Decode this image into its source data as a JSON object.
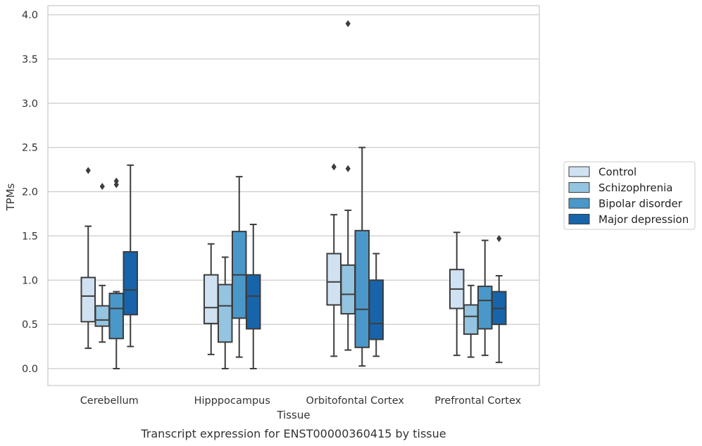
{
  "caption": "Transcript expression for ENST00000360415 by tissue",
  "chart_data": {
    "type": "boxplot",
    "xlabel": "Tissue",
    "ylabel": "TPMs",
    "ylim": [
      -0.18,
      4.1
    ],
    "yticks": [
      0.0,
      0.5,
      1.0,
      1.5,
      2.0,
      2.5,
      3.0,
      3.5,
      4.0
    ],
    "ytick_labels": [
      "0.0",
      "0.5",
      "1.0",
      "1.5",
      "2.0",
      "2.5",
      "3.0",
      "3.5",
      "4.0"
    ],
    "grid": "horizontal",
    "legend_position": "right",
    "categories": [
      "Cerebellum",
      "Hipppocampus",
      "Orbitofontal Cortex",
      "Prefrontal Cortex"
    ],
    "series": [
      {
        "name": "Control",
        "color": "#d0e1f2",
        "boxes": [
          {
            "whislo": 0.23,
            "q1": 0.53,
            "med": 0.82,
            "q3": 1.03,
            "whishi": 1.61,
            "fliers": [
              2.24
            ]
          },
          {
            "whislo": 0.16,
            "q1": 0.51,
            "med": 0.69,
            "q3": 1.06,
            "whishi": 1.41,
            "fliers": []
          },
          {
            "whislo": 0.14,
            "q1": 0.72,
            "med": 0.98,
            "q3": 1.3,
            "whishi": 1.74,
            "fliers": [
              2.28
            ]
          },
          {
            "whislo": 0.15,
            "q1": 0.68,
            "med": 0.9,
            "q3": 1.12,
            "whishi": 1.54,
            "fliers": []
          }
        ]
      },
      {
        "name": "Schizophrenia",
        "color": "#94c4df",
        "boxes": [
          {
            "whislo": 0.3,
            "q1": 0.48,
            "med": 0.55,
            "q3": 0.71,
            "whishi": 0.94,
            "fliers": [
              2.06
            ]
          },
          {
            "whislo": 0.0,
            "q1": 0.3,
            "med": 0.71,
            "q3": 0.95,
            "whishi": 1.26,
            "fliers": []
          },
          {
            "whislo": 0.21,
            "q1": 0.62,
            "med": 0.84,
            "q3": 1.17,
            "whishi": 1.79,
            "fliers": [
              2.26,
              3.9
            ]
          },
          {
            "whislo": 0.13,
            "q1": 0.39,
            "med": 0.59,
            "q3": 0.72,
            "whishi": 0.94,
            "fliers": []
          }
        ]
      },
      {
        "name": "Bipolar disorder",
        "color": "#4a98c9",
        "boxes": [
          {
            "whislo": 0.0,
            "q1": 0.34,
            "med": 0.68,
            "q3": 0.85,
            "whishi": 0.87,
            "fliers": [
              2.08,
              2.12
            ]
          },
          {
            "whislo": 0.13,
            "q1": 0.57,
            "med": 1.06,
            "q3": 1.55,
            "whishi": 2.17,
            "fliers": []
          },
          {
            "whislo": 0.03,
            "q1": 0.24,
            "med": 0.67,
            "q3": 1.56,
            "whishi": 2.5,
            "fliers": []
          },
          {
            "whislo": 0.15,
            "q1": 0.45,
            "med": 0.77,
            "q3": 0.93,
            "whishi": 1.45,
            "fliers": []
          }
        ]
      },
      {
        "name": "Major depression",
        "color": "#1764ab",
        "boxes": [
          {
            "whislo": 0.25,
            "q1": 0.61,
            "med": 0.89,
            "q3": 1.32,
            "whishi": 2.3,
            "fliers": []
          },
          {
            "whislo": 0.0,
            "q1": 0.45,
            "med": 0.82,
            "q3": 1.06,
            "whishi": 1.63,
            "fliers": []
          },
          {
            "whislo": 0.14,
            "q1": 0.33,
            "med": 0.51,
            "q3": 1.0,
            "whishi": 1.3,
            "fliers": []
          },
          {
            "whislo": 0.07,
            "q1": 0.5,
            "med": 0.68,
            "q3": 0.87,
            "whishi": 1.05,
            "fliers": [
              1.47
            ]
          }
        ]
      }
    ]
  }
}
